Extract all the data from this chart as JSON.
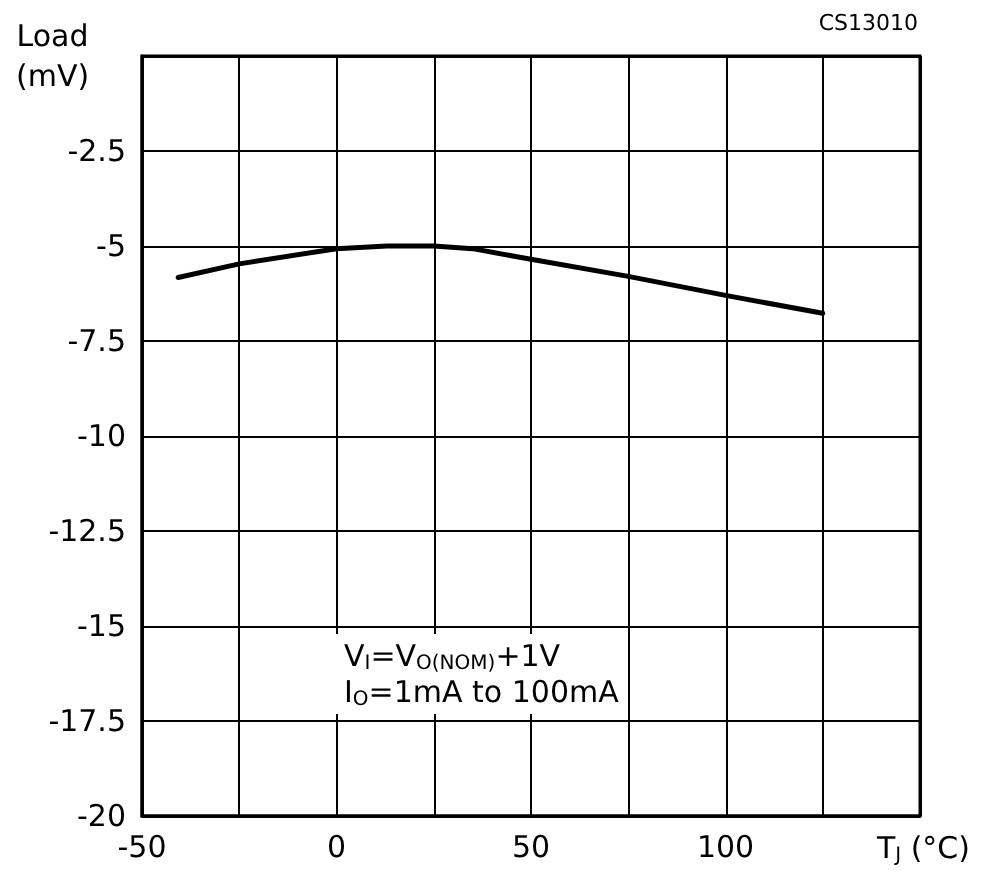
{
  "chart_data": {
    "type": "line",
    "xlabel": "T$_{J}$ (°C)",
    "ylabel": "Load (mV)",
    "annotations": [
      "CS13010",
      "V$_{I}$=V$_{O(NOM)}$+1V",
      "I$_{O}$=1mA to 100mA"
    ],
    "x": [
      -40.7,
      -25,
      0,
      13,
      25,
      35,
      50,
      75,
      100,
      125
    ],
    "series": [
      {
        "color": "#000000",
        "values": [
          -5.83,
          -5.47,
          -5.07,
          -5.0,
          -5.0,
          -5.07,
          -5.35,
          -5.8,
          -6.3,
          -6.77
        ]
      }
    ],
    "xlim": [
      -50,
      150
    ],
    "ylim": [
      -20,
      0
    ],
    "xticks": [
      -50,
      {
        "value": -25,
        "label": null
      },
      0,
      {
        "value": 25,
        "label": null
      },
      50,
      {
        "value": 75,
        "label": null
      },
      100,
      {
        "value": 125,
        "label": null
      },
      {
        "value": 150,
        "label": null
      }
    ],
    "yticks": [
      -20,
      -17.5,
      -15,
      -12.5,
      -10,
      -7.5,
      -5,
      -2.5,
      {
        "value": 0,
        "label": null
      }
    ],
    "grid": true,
    "marker": "none",
    "line_style": "solid"
  }
}
